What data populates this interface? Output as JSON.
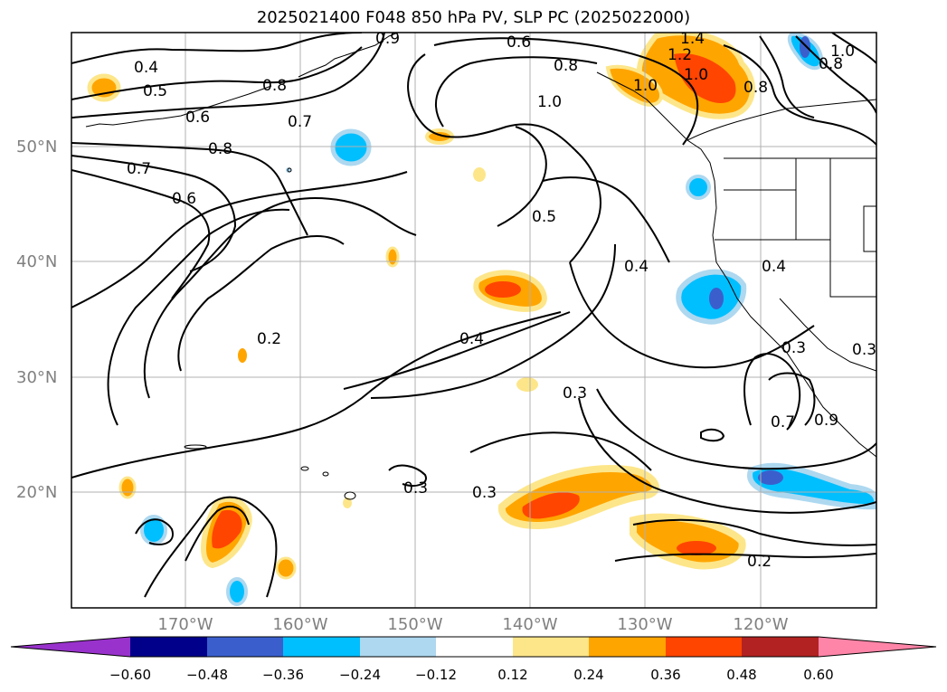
{
  "title": "2025021400 F048 850 hPa PV, SLP PC (2025022000)",
  "map": {
    "lat_labels": [
      "50°N",
      "40°N",
      "30°N",
      "20°N"
    ],
    "lon_labels": [
      "170°W",
      "160°W",
      "150°W",
      "140°W",
      "130°W",
      "120°W"
    ],
    "grid": true
  },
  "contour_labels": [
    "0.4",
    "0.5",
    "0.6",
    "0.8",
    "0.7",
    "0.8",
    "0.7",
    "0.6",
    "0.9",
    "0.6",
    "0.8",
    "1.0",
    "1.4",
    "1.2",
    "1.0",
    "0.8",
    "1.0",
    "0.5",
    "0.4",
    "0.4",
    "0.2",
    "0.4",
    "0.3",
    "0.3",
    "0.3",
    "0.7",
    "0.3",
    "0.2",
    "0.3",
    "0.9",
    "1.0",
    "0.8"
  ],
  "colorbar": {
    "ticks": [
      "−0.60",
      "−0.48",
      "−0.36",
      "−0.24",
      "−0.12",
      "0.12",
      "0.24",
      "0.36",
      "0.48",
      "0.60"
    ],
    "colors": [
      "#9932cc",
      "#00008b",
      "#3a5fcd",
      "#00bfff",
      "#add8f0",
      "#ffffff",
      "#fde68a",
      "#ffa500",
      "#ff4500",
      "#b22222",
      "#ff85a8"
    ]
  }
}
